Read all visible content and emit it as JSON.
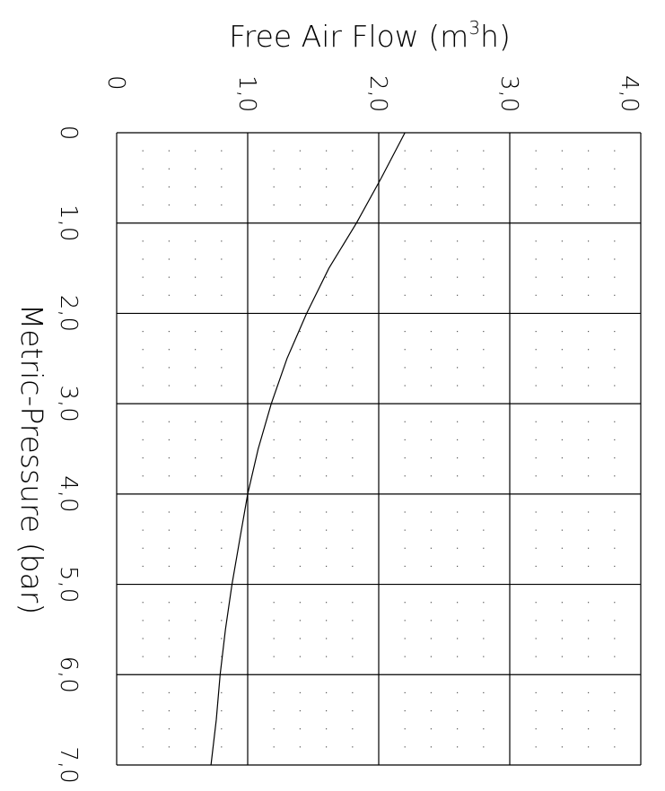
{
  "chart_data": {
    "type": "line",
    "title": "",
    "xlabel": "Metric-Pressure (bar)",
    "ylabel_main": "Free Air Flow (m",
    "ylabel_sup": "3",
    "ylabel_tail": "h)",
    "xlim": [
      0,
      7.0
    ],
    "ylim": [
      0,
      4.0
    ],
    "x_ticks": [
      "0",
      "1,0",
      "2,0",
      "3,0",
      "4,0",
      "5,0",
      "6,0",
      "7,0"
    ],
    "y_ticks": [
      "0",
      "1,0",
      "2,0",
      "3,0",
      "4,0"
    ],
    "grid": true,
    "legend": "none",
    "series": [
      {
        "x": [
          0,
          0.5,
          1.0,
          1.5,
          2.0,
          2.5,
          3.0,
          3.5,
          4.0,
          4.5,
          5.0,
          5.5,
          6.0,
          6.5,
          7.0
        ],
        "values": [
          2.2,
          2.02,
          1.83,
          1.62,
          1.45,
          1.3,
          1.18,
          1.08,
          1.0,
          0.94,
          0.88,
          0.83,
          0.79,
          0.76,
          0.72
        ]
      }
    ],
    "colors": {
      "line": "#000000",
      "grid": "#000000",
      "dots": "#555555"
    }
  }
}
